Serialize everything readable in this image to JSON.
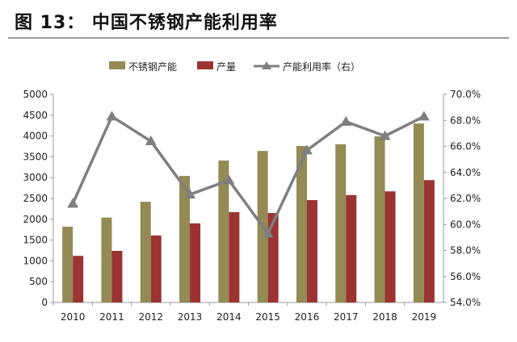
{
  "title": "图 13： 中国不锈钢产能利用率",
  "chart_data": {
    "type": "bar",
    "title": "中国不锈钢产能利用率",
    "categories": [
      "2010",
      "2011",
      "2012",
      "2013",
      "2014",
      "2015",
      "2016",
      "2017",
      "2018",
      "2019"
    ],
    "series": [
      {
        "name": "不锈钢产能",
        "type": "bar",
        "axis": "left",
        "color": "#948a54",
        "values": [
          1820,
          2040,
          2420,
          3040,
          3410,
          3640,
          3760,
          3800,
          3990,
          4300
        ]
      },
      {
        "name": "产量",
        "type": "bar",
        "axis": "left",
        "color": "#9b3333",
        "values": [
          1120,
          1240,
          1610,
          1900,
          2170,
          2150,
          2460,
          2580,
          2670,
          2940
        ]
      },
      {
        "name": "产能利用率（右）",
        "type": "line",
        "axis": "right",
        "color": "#7f7f7f",
        "marker": "triangle",
        "values": [
          61.6,
          68.3,
          66.4,
          62.3,
          63.4,
          59.3,
          65.7,
          67.9,
          66.8,
          68.3
        ]
      }
    ],
    "ylim": [
      0,
      5000
    ],
    "yticks": [
      "0",
      "500",
      "1000",
      "1500",
      "2000",
      "2500",
      "3000",
      "3500",
      "4000",
      "4500",
      "5000"
    ],
    "y2lim": [
      54,
      70
    ],
    "y2ticks": [
      "54.0%",
      "56.0%",
      "58.0%",
      "60.0%",
      "62.0%",
      "64.0%",
      "66.0%",
      "68.0%",
      "70.0%"
    ],
    "legend_position": "top",
    "grid": false
  }
}
